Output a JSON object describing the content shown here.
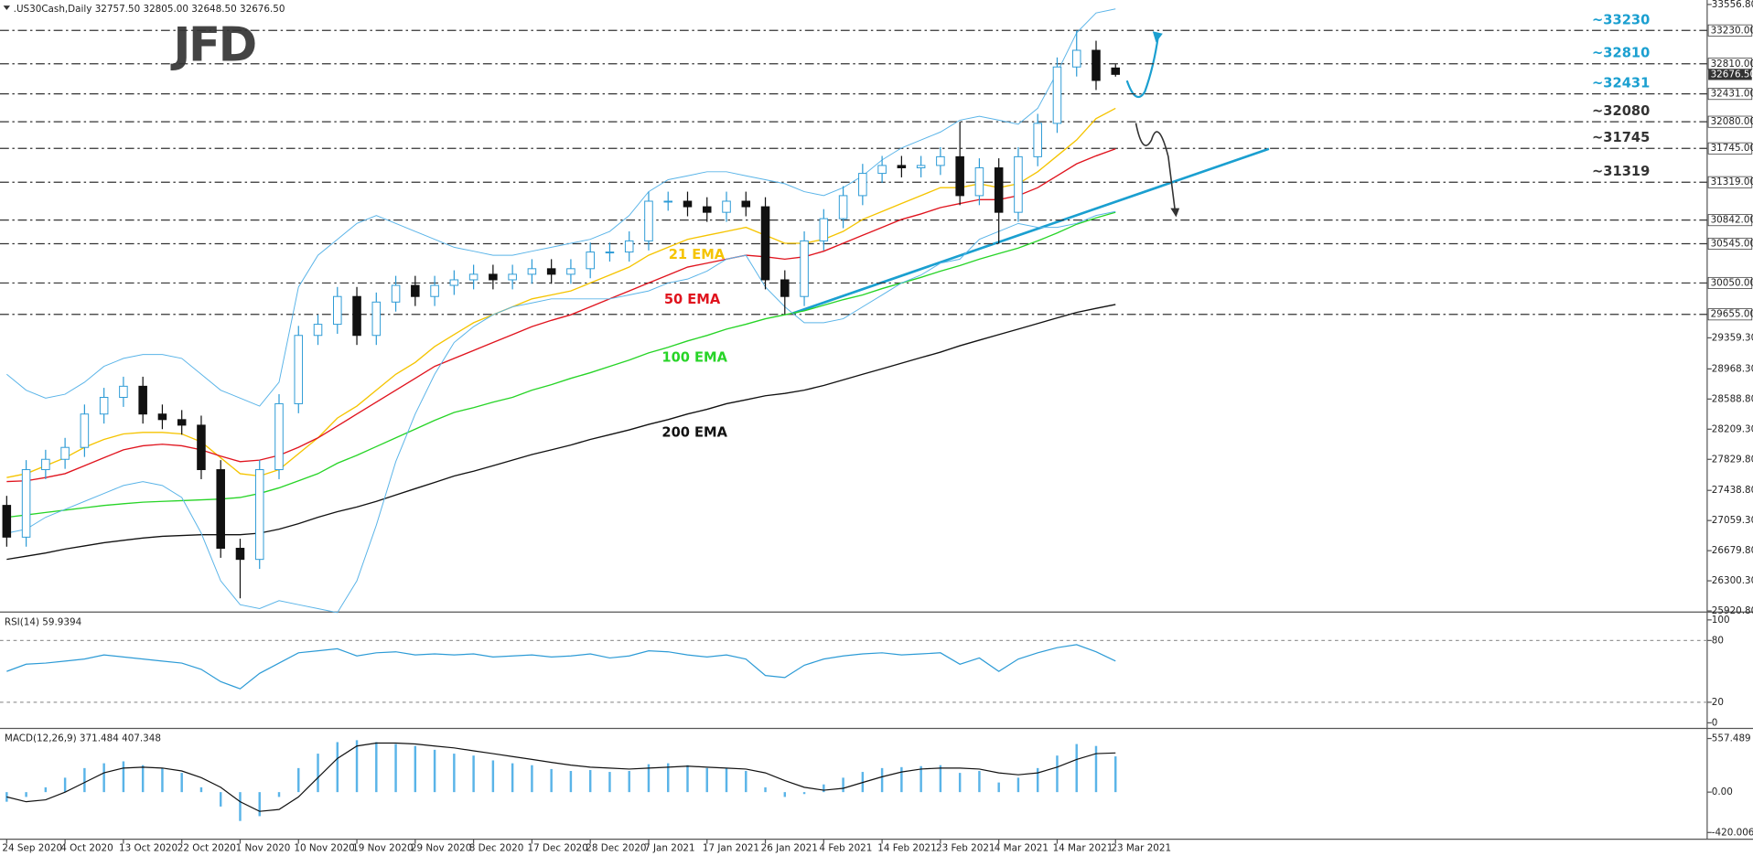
{
  "chart_data": [
    {
      "type": "candlestick",
      "header": ".US30Cash,Daily  32757.50 32805.00 32648.50 32676.50",
      "logo": "JFD",
      "categories": [
        "24 Sep 2020",
        null,
        null,
        "4 Oct 2020",
        null,
        null,
        "13 Oct 2020",
        null,
        null,
        "22 Oct 2020",
        null,
        null,
        "1 Nov 2020",
        null,
        null,
        "10 Nov 2020",
        null,
        null,
        "19 Nov 2020",
        null,
        null,
        "29 Nov 2020",
        null,
        null,
        "8 Dec 2020",
        null,
        null,
        "17 Dec 2020",
        null,
        null,
        "28 Dec 2020",
        null,
        null,
        "7 Jan 2021",
        null,
        null,
        "17 Jan 2021",
        null,
        null,
        "26 Jan 2021",
        null,
        null,
        "4 Feb 2021",
        null,
        null,
        "14 Feb 2021",
        null,
        null,
        "23 Feb 2021",
        null,
        null,
        "4 Mar 2021",
        null,
        null,
        "14 Mar 2021",
        null,
        null,
        "23 Mar 2021"
      ],
      "open": [
        27250,
        26850,
        27700,
        27830,
        27980,
        28400,
        28610,
        28750,
        28400,
        28330,
        28260,
        27700,
        26710,
        26570,
        27700,
        28530,
        29390,
        29530,
        29880,
        29390,
        29810,
        30020,
        29880,
        30020,
        30090,
        30160,
        30090,
        30160,
        30230,
        30160,
        30230,
        30440,
        30440,
        30580,
        31080,
        31080,
        31010,
        30940,
        31080,
        31010,
        30090,
        29880,
        30580,
        30860,
        31150,
        31430,
        31530,
        31500,
        31530,
        31640,
        31150,
        31500,
        30940,
        31640,
        32060,
        32770,
        32980,
        32757.5
      ],
      "high": [
        27370,
        27820,
        27950,
        28100,
        28520,
        28730,
        28870,
        28870,
        28520,
        28450,
        28380,
        27820,
        26830,
        27820,
        28650,
        29510,
        29650,
        30000,
        30000,
        29930,
        30140,
        30140,
        30140,
        30210,
        30280,
        30280,
        30280,
        30350,
        30350,
        30350,
        30560,
        30560,
        30700,
        31200,
        31200,
        31200,
        31130,
        31200,
        31200,
        31130,
        30210,
        30700,
        30980,
        31270,
        31550,
        31650,
        31650,
        31650,
        31760,
        32080,
        31620,
        31620,
        31760,
        32180,
        32890,
        33230,
        33100,
        32805
      ],
      "low": [
        26730,
        26730,
        27580,
        27710,
        27860,
        28280,
        28490,
        28280,
        28210,
        28140,
        27580,
        26590,
        26080,
        26450,
        27580,
        28410,
        29270,
        29410,
        29270,
        29270,
        29690,
        29760,
        29760,
        29900,
        29970,
        29970,
        29970,
        30040,
        30040,
        30040,
        30110,
        30320,
        30320,
        30460,
        30960,
        30890,
        30820,
        30820,
        30890,
        29970,
        29655,
        29760,
        30460,
        30740,
        31030,
        31310,
        31380,
        31380,
        31410,
        31030,
        31030,
        30545,
        30820,
        31520,
        31940,
        32650,
        32480,
        32648.5
      ],
      "close": [
        26850,
        27700,
        27830,
        27980,
        28400,
        28610,
        28750,
        28400,
        28330,
        28260,
        27700,
        26710,
        26570,
        27700,
        28530,
        29390,
        29530,
        29880,
        29390,
        29810,
        30020,
        29880,
        30020,
        30090,
        30160,
        30090,
        30160,
        30230,
        30160,
        30230,
        30440,
        30440,
        30580,
        31080,
        31080,
        31010,
        30940,
        31080,
        31010,
        30090,
        29880,
        30580,
        30860,
        31150,
        31430,
        31530,
        31500,
        31530,
        31640,
        31150,
        31500,
        30940,
        31640,
        32060,
        32770,
        32980,
        32600,
        32676.5
      ],
      "up_color": "#ffffff",
      "up_edge": "#2d9bd6",
      "down_color": "#111111",
      "series": [
        {
          "name": "21 EMA",
          "color": "#f5c400",
          "values": [
            27600,
            27650,
            27750,
            27850,
            27980,
            28080,
            28150,
            28170,
            28170,
            28150,
            28050,
            27850,
            27650,
            27620,
            27700,
            27900,
            28100,
            28350,
            28500,
            28700,
            28900,
            29050,
            29250,
            29400,
            29550,
            29650,
            29750,
            29850,
            29900,
            29950,
            30050,
            30150,
            30250,
            30400,
            30500,
            30600,
            30650,
            30700,
            30750,
            30650,
            30550,
            30550,
            30600,
            30700,
            30850,
            30950,
            31050,
            31150,
            31250,
            31250,
            31300,
            31250,
            31300,
            31450,
            31650,
            31850,
            32120,
            32250
          ]
        },
        {
          "name": "50 EMA",
          "color": "#e0141e",
          "values": [
            27550,
            27560,
            27600,
            27650,
            27750,
            27850,
            27950,
            28000,
            28020,
            28000,
            27950,
            27870,
            27800,
            27820,
            27880,
            27980,
            28100,
            28250,
            28400,
            28550,
            28700,
            28850,
            29000,
            29100,
            29200,
            29300,
            29400,
            29500,
            29580,
            29650,
            29750,
            29850,
            29950,
            30050,
            30150,
            30250,
            30300,
            30350,
            30400,
            30380,
            30350,
            30380,
            30450,
            30550,
            30650,
            30750,
            30850,
            30920,
            31000,
            31050,
            31100,
            31100,
            31150,
            31250,
            31400,
            31550,
            31650,
            31740
          ]
        },
        {
          "name": "100 EMA",
          "color": "#27d427",
          "values": [
            27100,
            27130,
            27160,
            27190,
            27220,
            27250,
            27270,
            27290,
            27300,
            27310,
            27320,
            27330,
            27350,
            27400,
            27470,
            27560,
            27650,
            27780,
            27880,
            27990,
            28100,
            28210,
            28320,
            28420,
            28480,
            28550,
            28610,
            28700,
            28770,
            28850,
            28920,
            29000,
            29080,
            29170,
            29240,
            29320,
            29390,
            29470,
            29530,
            29600,
            29650,
            29700,
            29770,
            29840,
            29900,
            29980,
            30050,
            30120,
            30200,
            30270,
            30350,
            30420,
            30490,
            30580,
            30680,
            30790,
            30870,
            30940
          ]
        },
        {
          "name": "200 EMA",
          "color": "#111111",
          "values": [
            26570,
            26610,
            26650,
            26700,
            26740,
            26780,
            26810,
            26840,
            26860,
            26870,
            26880,
            26880,
            26880,
            26900,
            26950,
            27020,
            27100,
            27170,
            27230,
            27300,
            27380,
            27460,
            27540,
            27620,
            27680,
            27750,
            27820,
            27890,
            27950,
            28010,
            28080,
            28140,
            28200,
            28270,
            28330,
            28400,
            28460,
            28530,
            28580,
            28630,
            28660,
            28700,
            28760,
            28830,
            28900,
            28970,
            29040,
            29110,
            29180,
            29260,
            29330,
            29400,
            29470,
            29540,
            29610,
            29680,
            29730,
            29780
          ]
        },
        {
          "color": "#5ab4e8",
          "values": [
            28900,
            28700,
            28600,
            28650,
            28800,
            29000,
            29100,
            29150,
            29150,
            29100,
            28900,
            28700,
            28600,
            28500,
            28800,
            30000,
            30400,
            30600,
            30800,
            30900,
            30800,
            30700,
            30600,
            30500,
            30450,
            30400,
            30400,
            30450,
            30500,
            30550,
            30600,
            30700,
            30900,
            31200,
            31350,
            31400,
            31450,
            31450,
            31400,
            31350,
            31300,
            31200,
            31150,
            31250,
            31400,
            31600,
            31750,
            31850,
            31950,
            32100,
            32150,
            32100,
            32050,
            32250,
            32700,
            33200,
            33450,
            33500
          ]
        },
        {
          "color": "#5ab4e8",
          "values": [
            26900,
            26950,
            27100,
            27200,
            27300,
            27400,
            27500,
            27550,
            27500,
            27350,
            26900,
            26300,
            26000,
            25950,
            26050,
            26000,
            25950,
            25900,
            26300,
            27000,
            27800,
            28400,
            28900,
            29300,
            29500,
            29650,
            29750,
            29800,
            29850,
            29850,
            29850,
            29850,
            29900,
            29950,
            30050,
            30100,
            30200,
            30350,
            30400,
            30000,
            29750,
            29550,
            29550,
            29600,
            29750,
            29900,
            30050,
            30150,
            30300,
            30350,
            30600,
            30700,
            30800,
            30750,
            30750,
            30800,
            30900,
            30950
          ]
        }
      ],
      "ylim": [
        25920.8,
        33556.8
      ],
      "yticks": [
        {
          "value": 25920.8,
          "label": "25920.80"
        },
        {
          "value": 26300.3,
          "label": "26300.30"
        },
        {
          "value": 26679.8,
          "label": "26679.80"
        },
        {
          "value": 27059.3,
          "label": "27059.30"
        },
        {
          "value": 27438.8,
          "label": "27438.80"
        },
        {
          "value": 27829.8,
          "label": "27829.80"
        },
        {
          "value": 28209.3,
          "label": "28209.30"
        },
        {
          "value": 28588.8,
          "label": "28588.80"
        },
        {
          "value": 28968.3,
          "label": "28968.30"
        },
        {
          "value": 29359.3,
          "label": "29359.30"
        },
        {
          "value": 33556.8,
          "label": "33556.80"
        }
      ],
      "levels": [
        {
          "value": 33230,
          "label": "33230.00"
        },
        {
          "value": 32810,
          "label": "32810.00"
        },
        {
          "value": 32431,
          "label": "32431.00"
        },
        {
          "value": 32080,
          "label": "32080.00"
        },
        {
          "value": 31745,
          "label": "31745.00"
        },
        {
          "value": 31319,
          "label": "31319.00"
        },
        {
          "value": 30842,
          "label": "30842.00"
        },
        {
          "value": 30545,
          "label": "30545.00"
        },
        {
          "value": 30050,
          "label": "30050.00"
        },
        {
          "value": 29655,
          "label": "29655.00"
        }
      ],
      "last_price": {
        "value": 32676.5,
        "label": "32676.50"
      },
      "annotations": [
        {
          "text": "~33230",
          "color": "#1a9fd0"
        },
        {
          "text": "~32810",
          "color": "#1a9fd0"
        },
        {
          "text": "~32431",
          "color": "#1a9fd0"
        },
        {
          "text": "~32080",
          "color": "#333333"
        },
        {
          "text": "~31745",
          "color": "#333333"
        },
        {
          "text": "~31319",
          "color": "#333333"
        }
      ]
    },
    {
      "type": "line",
      "title": "RSI(14) 59.9394",
      "color": "#2d9bd6",
      "values": [
        50,
        57,
        58,
        60,
        62,
        66,
        64,
        62,
        60,
        58,
        52,
        40,
        33,
        48,
        58,
        68,
        70,
        72,
        65,
        68,
        69,
        66,
        67,
        66,
        67,
        64,
        65,
        66,
        64,
        65,
        67,
        63,
        65,
        70,
        69,
        66,
        64,
        66,
        62,
        46,
        44,
        56,
        62,
        65,
        67,
        68,
        66,
        67,
        68,
        57,
        63,
        50,
        62,
        68,
        73,
        76,
        69,
        60
      ],
      "ylim": [
        0,
        100
      ],
      "yticks": [
        0,
        20,
        80,
        100
      ]
    },
    {
      "type": "macd",
      "title": "MACD(12,26,9) 371.484 407.348",
      "color": "#5ab4e8",
      "line_color": "#111111",
      "values": [
        -100,
        -50,
        50,
        150,
        250,
        300,
        320,
        280,
        250,
        200,
        50,
        -150,
        -300,
        -250,
        -50,
        250,
        400,
        520,
        540,
        520,
        500,
        480,
        440,
        400,
        380,
        330,
        300,
        280,
        240,
        220,
        230,
        210,
        220,
        290,
        300,
        280,
        250,
        250,
        220,
        50,
        -50,
        -20,
        80,
        150,
        210,
        250,
        260,
        270,
        280,
        200,
        220,
        100,
        150,
        250,
        380,
        500,
        480,
        371.484
      ],
      "signal": [
        -50,
        -100,
        -80,
        0,
        100,
        200,
        250,
        260,
        250,
        220,
        150,
        50,
        -100,
        -200,
        -180,
        -50,
        150,
        350,
        480,
        510,
        510,
        500,
        480,
        460,
        430,
        400,
        370,
        340,
        310,
        280,
        260,
        250,
        240,
        250,
        260,
        270,
        260,
        250,
        240,
        200,
        120,
        50,
        20,
        40,
        100,
        160,
        210,
        240,
        250,
        250,
        240,
        200,
        180,
        200,
        260,
        340,
        400,
        407.348
      ],
      "ylim": [
        -420.006,
        557.489
      ],
      "yticks": [
        -420.006,
        {
          "value": 0,
          "label": "0.00"
        },
        557.489
      ]
    }
  ]
}
